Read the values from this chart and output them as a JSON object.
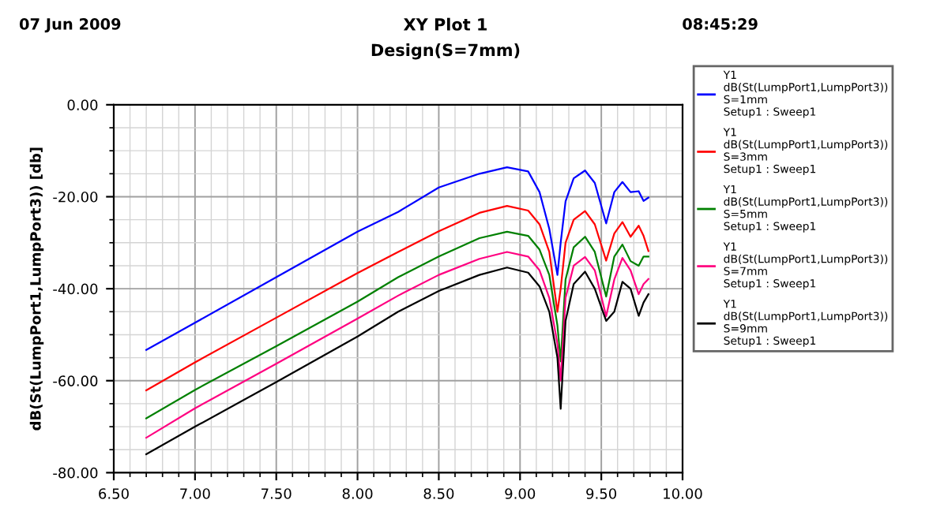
{
  "chart_data": {
    "type": "line",
    "title": "XY Plot 1",
    "subtitle": "Design(S=7mm)",
    "annotations": [
      "07 Jun 2009",
      "08:45:29"
    ],
    "ylabel": "dB(St(LumpPort1,LumpPort3)) [db]",
    "x": [
      6.7,
      7.0,
      7.5,
      8.0,
      8.25,
      8.5,
      8.75,
      8.92,
      9.05,
      9.12,
      9.18,
      9.23,
      9.25,
      9.28,
      9.33,
      9.4,
      9.46,
      9.53,
      9.58,
      9.63,
      9.68,
      9.73,
      9.76,
      9.79
    ],
    "series": [
      {
        "name": "Y1\ndB(St(LumpPort1,LumpPort3))\nS=1mm\nSetup1 : Sweep1",
        "color": "#0000ff",
        "values": [
          -53.3,
          -47.4,
          -37.5,
          -27.6,
          -23.3,
          -18,
          -15,
          -13.6,
          -14.5,
          -19,
          -27,
          -37,
          -30,
          -21,
          -16,
          -14.3,
          -17,
          -25.8,
          -19,
          -16.8,
          -19,
          -18.8,
          -20.9,
          -20.2
        ]
      },
      {
        "name": "Y1\ndB(St(LumpPort1,LumpPort3))\nS=3mm\nSetup1 : Sweep1",
        "color": "#ff0000",
        "values": [
          -62.1,
          -56,
          -46.3,
          -36.6,
          -32,
          -27.5,
          -23.5,
          -22,
          -23,
          -26,
          -32,
          -45,
          -40,
          -30,
          -25,
          -23.1,
          -26,
          -33.9,
          -28,
          -25.5,
          -28.7,
          -26.3,
          -28.5,
          -31.8
        ]
      },
      {
        "name": "Y1\ndB(St(LumpPort1,LumpPort3))\nS=5mm\nSetup1 : Sweep1",
        "color": "#008000",
        "values": [
          -68.2,
          -62,
          -52.5,
          -42.8,
          -37.5,
          -33,
          -29,
          -27.6,
          -28.5,
          -31.5,
          -37,
          -48,
          -55.8,
          -38,
          -31,
          -28.7,
          -32,
          -41.7,
          -33,
          -30.4,
          -34,
          -35,
          -33,
          -33
        ]
      },
      {
        "name": "Y1\ndB(St(LumpPort1,LumpPort3))\nS=7mm\nSetup1 : Sweep1",
        "color": "#ff0080",
        "values": [
          -72.4,
          -66,
          -56.3,
          -46.5,
          -41.5,
          -37,
          -33.5,
          -32,
          -33,
          -36,
          -42,
          -52,
          -60,
          -42,
          -35,
          -33.1,
          -36,
          -46,
          -38,
          -33.3,
          -36,
          -41.2,
          -39,
          -37.9
        ]
      },
      {
        "name": "Y1\ndB(St(LumpPort1,LumpPort3))\nS=9mm\nSetup1 : Sweep1",
        "color": "#000000",
        "values": [
          -76,
          -70,
          -60.3,
          -50.4,
          -45,
          -40.5,
          -37,
          -35.4,
          -36.5,
          -39.5,
          -45,
          -55,
          -66.1,
          -47,
          -39,
          -36.3,
          -40,
          -47,
          -45,
          -38.5,
          -40,
          -45.9,
          -43,
          -41.2
        ]
      }
    ],
    "xlim": [
      6.5,
      10.0
    ],
    "xticks": [
      {
        "value": 6.5,
        "label": "6.50"
      },
      {
        "value": 7.0,
        "label": "7.00"
      },
      {
        "value": 7.5,
        "label": "7.50"
      },
      {
        "value": 8.0,
        "label": "8.00"
      },
      {
        "value": 8.5,
        "label": "8.50"
      },
      {
        "value": 9.0,
        "label": "9.00"
      },
      {
        "value": 9.5,
        "label": "9.50"
      },
      {
        "value": 10.0,
        "label": "10.00"
      }
    ],
    "ylim": [
      -80,
      0
    ],
    "yticks": [
      {
        "value": -80,
        "label": "-80.00"
      },
      {
        "value": -60,
        "label": "-60.00"
      },
      {
        "value": -40,
        "label": "-40.00"
      },
      {
        "value": -20,
        "label": "-20.00"
      },
      {
        "value": 0,
        "label": "0.00"
      }
    ],
    "grid": true,
    "legend": "right",
    "line_style": "solid"
  }
}
